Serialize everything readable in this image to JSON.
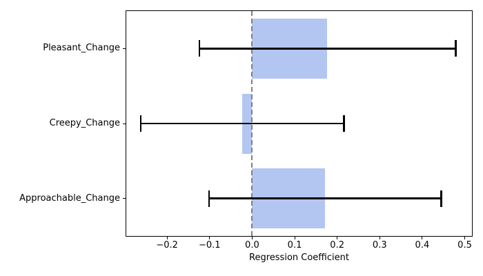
{
  "chart_data": {
    "type": "bar",
    "orientation": "horizontal",
    "title": "",
    "xlabel": "Regression Coefficient",
    "ylabel": "",
    "categories": [
      "Pleasant_Change",
      "Creepy_Change",
      "Approachable_Change"
    ],
    "values": [
      0.177,
      -0.023,
      0.171
    ],
    "ci_low": [
      -0.124,
      -0.262,
      -0.101
    ],
    "ci_high": [
      0.479,
      0.216,
      0.445
    ],
    "xticks": [
      -0.2,
      -0.1,
      0.0,
      0.1,
      0.2,
      0.3,
      0.4,
      0.5
    ],
    "xtick_labels": [
      "−0.2",
      "−0.1",
      "0.0",
      "0.1",
      "0.2",
      "0.3",
      "0.4",
      "0.5"
    ],
    "xlim": [
      -0.296,
      0.517
    ],
    "bar_height_fraction": 0.8,
    "bar_color": "#b3c6f2",
    "errorbar_color": "#000000",
    "zero_line": {
      "x": 0.0,
      "style": "dashed",
      "color": "#808080"
    },
    "grid": false,
    "legend": null,
    "background": "#ffffff"
  }
}
